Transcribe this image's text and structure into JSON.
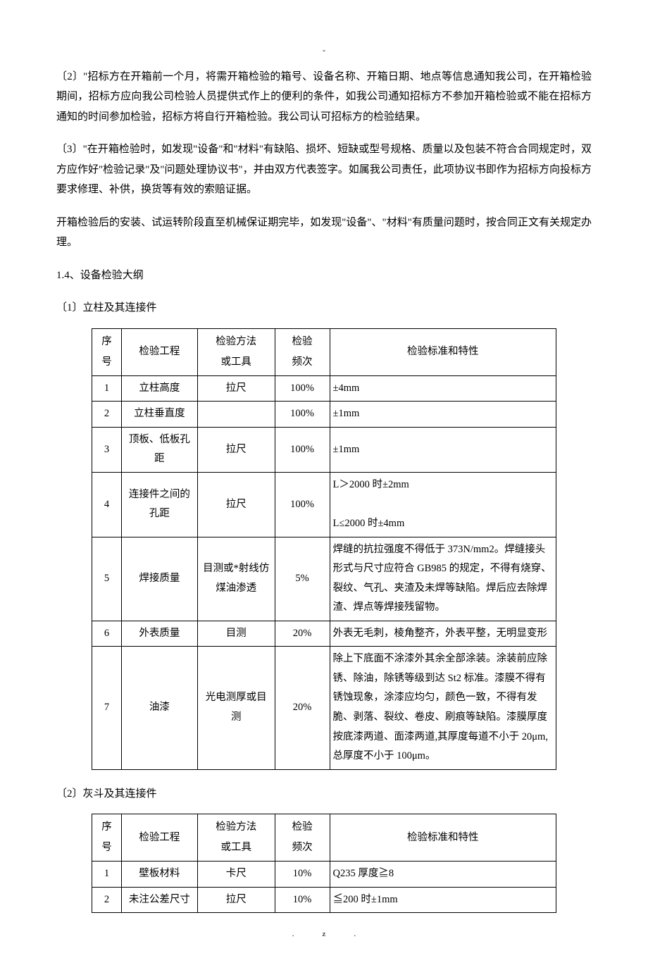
{
  "marks": {
    "top": "-",
    "bottom_left": ".",
    "bottom_right": "z."
  },
  "paragraphs": {
    "p2": "〔2〕\"招标方在开箱前一个月，将需开箱检验的箱号、设备名称、开箱日期、地点等信息通知我公司，在开箱检验期间，招标方应向我公司检验人员提供式作上的便利的条件，如我公司通知招标方不参加开箱检验或不能在招标方通知的时间参加检验，招标方将自行开箱检验。我公司认可招标方的检验结果。",
    "p3": "〔3〕\"在开箱检验时，如发现\"设备\"和\"材料\"有缺陷、损坏、短缺或型号规格、质量以及包装不符合合同规定时，双方应作好\"检验记录\"及\"问题处理协议书\"，并由双方代表签字。如属我公司责任，此项协议书即作为招标方向投标方要求修理、补供，换货等有效的索赔证据。",
    "p4": "开箱检验后的安装、试运转阶段直至机械保证期完毕，如发现\"设备\"、\"材料\"有质量问题时，按合同正文有关规定办理。",
    "s14": "1.4、设备检验大纲",
    "sub1": "〔1〕立柱及其连接件",
    "sub2": "〔2〕灰斗及其连接件"
  },
  "table_header": {
    "seq": "序号",
    "item": "检验工程",
    "method_line1": "检验方法",
    "method_line2": "或工具",
    "freq_line1": "检验",
    "freq_line2": "频次",
    "std": "检验标准和特性"
  },
  "table1": {
    "rows": [
      {
        "seq": "1",
        "item": "立柱高度",
        "method": "拉尺",
        "freq": "100%",
        "std": "±4mm"
      },
      {
        "seq": "2",
        "item": "立柱垂直度",
        "method": "",
        "freq": "100%",
        "std": "±1mm"
      },
      {
        "seq": "3",
        "item": "顶板、低板孔距",
        "method": "拉尺",
        "freq": "100%",
        "std": "±1mm"
      },
      {
        "seq": "4",
        "item": "连接件之间的孔距",
        "method": "拉尺",
        "freq": "100%",
        "std": "L＞2000 时±2mm\nL≤2000 时±4mm"
      },
      {
        "seq": "5",
        "item": "焊接质量",
        "method": "目测或*射线仿煤油渗透",
        "freq": "5%",
        "std": "焊缝的抗拉强度不得低于 373N/mm2。焊缝接头形式与尺寸应符合 GB985 的规定，不得有烧穿、裂纹、气孔、夹渣及未焊等缺陷。焊后应去除焊渣、焊点等焊接残留物。"
      },
      {
        "seq": "6",
        "item": "外表质量",
        "method": "目测",
        "freq": "20%",
        "std": "外表无毛刺，棱角整齐，外表平整，无明显变形"
      },
      {
        "seq": "7",
        "item": "油漆",
        "method": "光电测厚或目测",
        "freq": "20%",
        "std": "除上下底面不涂漆外其余全部涂装。涂装前应除锈、除油，除锈等级到达 St2 标准。漆膜不得有锈蚀现象，涂漆应均匀，颜色一致，不得有发脆、剥落、裂纹、卷皮、刷痕等缺陷。漆膜厚度按底漆两道、面漆两道,其厚度每道不小于 20μm,总厚度不小于 100μm。"
      }
    ]
  },
  "table2": {
    "rows": [
      {
        "seq": "1",
        "item": "壁板材料",
        "method": "卡尺",
        "freq": "10%",
        "std": "Q235 厚度≧8"
      },
      {
        "seq": "2",
        "item": "未注公差尺寸",
        "method": "拉尺",
        "freq": "10%",
        "std": "≦200 时±1mm"
      }
    ]
  }
}
